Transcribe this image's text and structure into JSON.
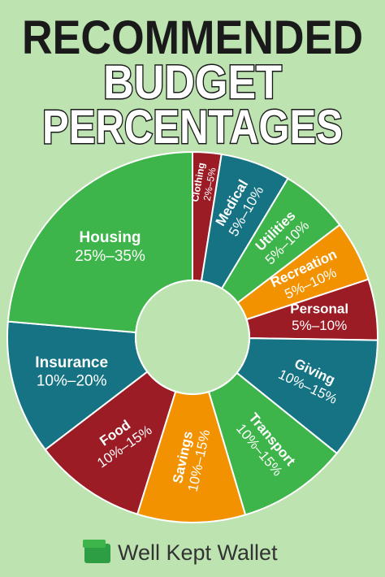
{
  "chart_data": {
    "type": "donut",
    "title": [
      "RECOMMENDED",
      "BUDGET",
      "PERCENTAGES"
    ],
    "categories": [
      "Clothing",
      "Medical",
      "Utilities",
      "Recreation",
      "Personal",
      "Giving",
      "Transport",
      "Savings",
      "Food",
      "Insurance",
      "Housing"
    ],
    "ranges": [
      "2%–5%",
      "5%–10%",
      "5%–10%",
      "5%–10%",
      "5%–10%",
      "10%–15%",
      "10%–15%",
      "10%–15%",
      "10%–15%",
      "10%–20%",
      "25%–35%"
    ],
    "values": [
      2.5,
      6.1,
      6.0,
      5.3,
      5.3,
      10.5,
      9.6,
      9.4,
      9.8,
      11.7,
      23.6
    ],
    "colors": [
      "#9b1c24",
      "#157384",
      "#3db54a",
      "#f39200",
      "#9b1c24",
      "#157384",
      "#3db54a",
      "#f39200",
      "#9b1c24",
      "#157384",
      "#3db54a"
    ],
    "source": "Well Kept Wallet"
  }
}
